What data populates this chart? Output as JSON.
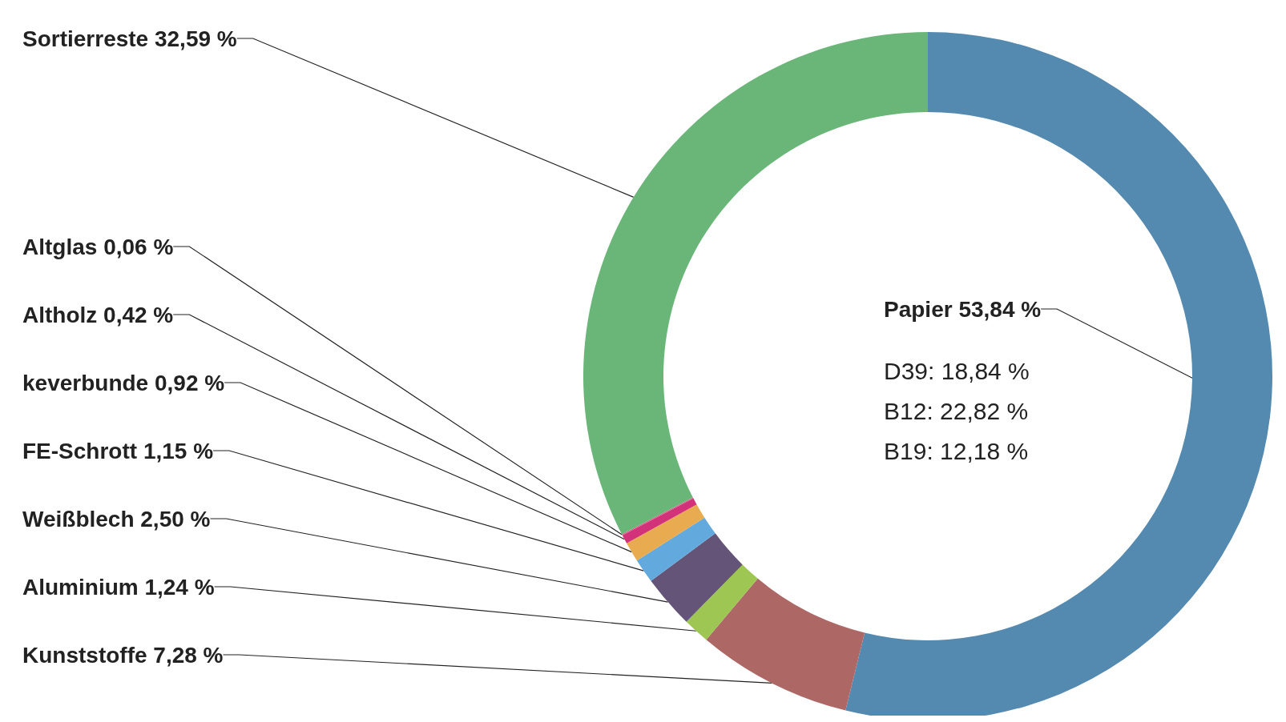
{
  "chart_data": {
    "type": "donut",
    "categories": [
      "Papier",
      "Kunststoffe",
      "Aluminium",
      "Weißblech",
      "FE-Schrott",
      "keverbunde",
      "Altholz",
      "Altglas",
      "Sortierreste"
    ],
    "values": [
      53.84,
      7.28,
      1.24,
      2.5,
      1.15,
      0.92,
      0.42,
      0.06,
      32.59
    ],
    "value_labels": [
      "53,84 %",
      "7,28 %",
      "1,24 %",
      "2,50 %",
      "1,15 %",
      "0,92 %",
      "0,42 %",
      "0,06 %",
      "32,59 %"
    ],
    "colors": [
      "#5489b0",
      "#ad6866",
      "#9dc653",
      "#635478",
      "#62a9dd",
      "#e9ab4f",
      "#d1327a",
      "#e05a8a",
      "#6ab679"
    ],
    "annotations": [
      "D39: 18,84 %",
      "B12: 22,82 %",
      "B19: 12,18 %"
    ],
    "legend": false
  }
}
